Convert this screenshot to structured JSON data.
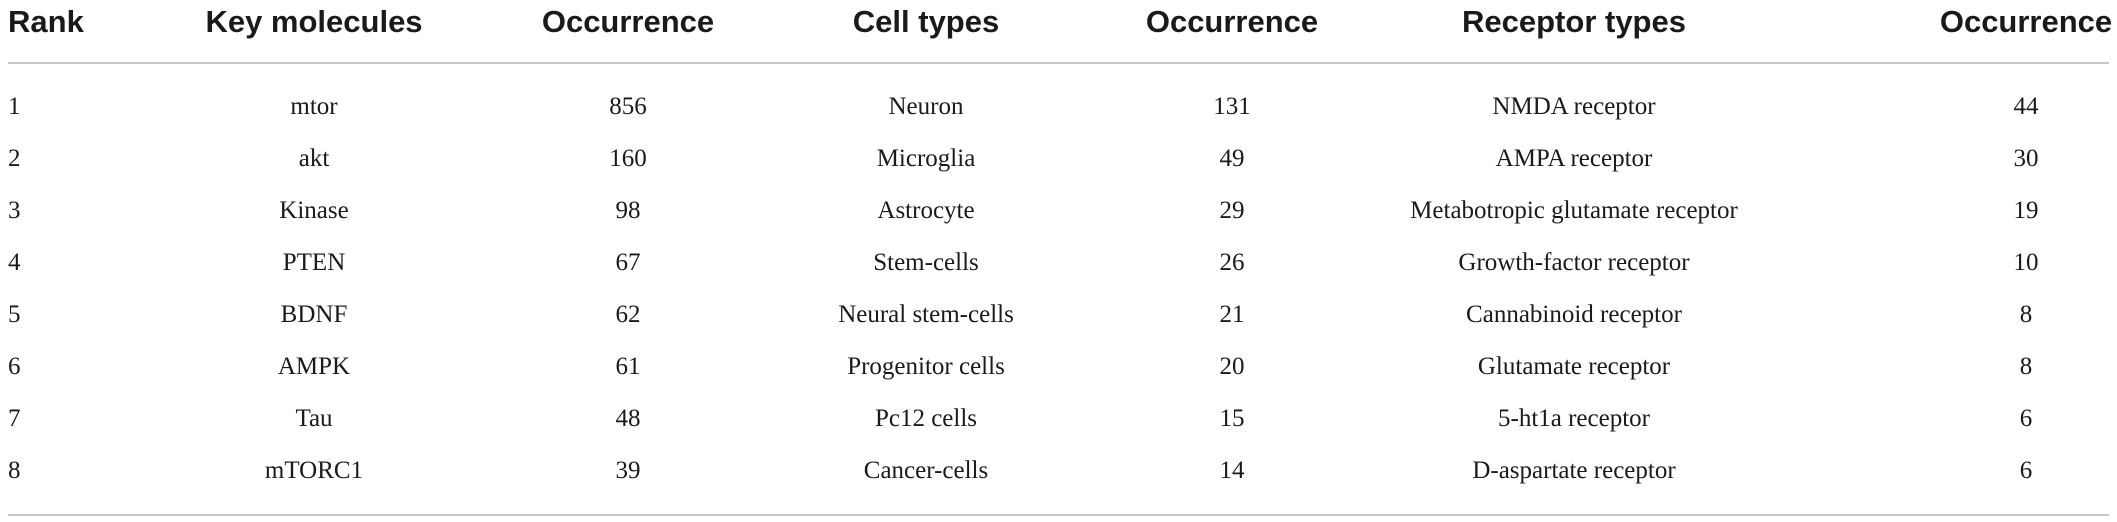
{
  "table": {
    "headers": {
      "rank": "Rank",
      "key_molecules": "Key molecules",
      "occurrence_1": "Occurrence",
      "cell_types": "Cell types",
      "occurrence_2": "Occurrence",
      "receptor_types": "Receptor types",
      "occurrence_3": "Occurrence"
    },
    "rows": [
      {
        "rank": "1",
        "molecule": "mtor",
        "molecule_occ": "856",
        "cell": "Neuron",
        "cell_occ": "131",
        "receptor": "NMDA receptor",
        "receptor_occ": "44"
      },
      {
        "rank": "2",
        "molecule": "akt",
        "molecule_occ": "160",
        "cell": "Microglia",
        "cell_occ": "49",
        "receptor": "AMPA receptor",
        "receptor_occ": "30"
      },
      {
        "rank": "3",
        "molecule": "Kinase",
        "molecule_occ": "98",
        "cell": "Astrocyte",
        "cell_occ": "29",
        "receptor": "Metabotropic glutamate receptor",
        "receptor_occ": "19"
      },
      {
        "rank": "4",
        "molecule": "PTEN",
        "molecule_occ": "67",
        "cell": "Stem-cells",
        "cell_occ": "26",
        "receptor": "Growth-factor receptor",
        "receptor_occ": "10"
      },
      {
        "rank": "5",
        "molecule": "BDNF",
        "molecule_occ": "62",
        "cell": "Neural stem-cells",
        "cell_occ": "21",
        "receptor": "Cannabinoid receptor",
        "receptor_occ": "8"
      },
      {
        "rank": "6",
        "molecule": "AMPK",
        "molecule_occ": "61",
        "cell": "Progenitor cells",
        "cell_occ": "20",
        "receptor": "Glutamate receptor",
        "receptor_occ": "8"
      },
      {
        "rank": "7",
        "molecule": "Tau",
        "molecule_occ": "48",
        "cell": "Pc12 cells",
        "cell_occ": "15",
        "receptor": "5-ht1a receptor",
        "receptor_occ": "6"
      },
      {
        "rank": "8",
        "molecule": "mTORC1",
        "molecule_occ": "39",
        "cell": "Cancer-cells",
        "cell_occ": "14",
        "receptor": "D-aspartate receptor",
        "receptor_occ": "6"
      }
    ]
  }
}
